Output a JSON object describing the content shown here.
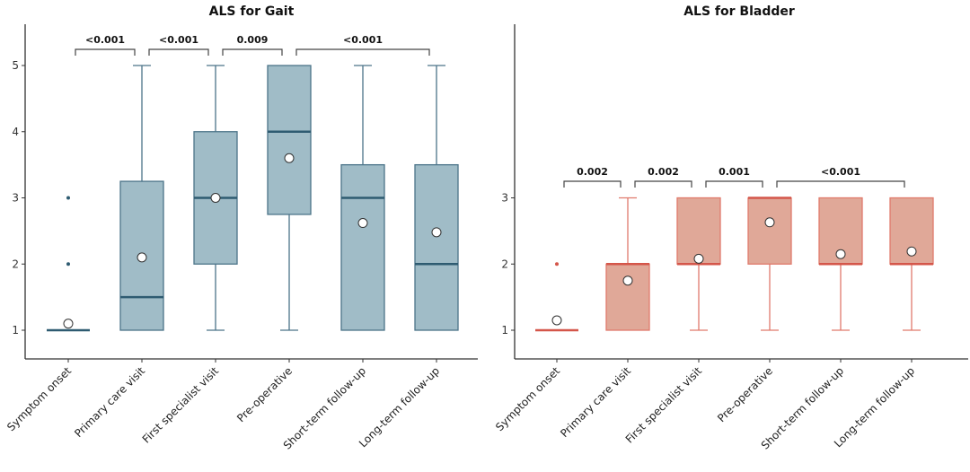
{
  "chart_data": [
    {
      "type": "box",
      "title": "ALS for Gait",
      "xlabel": "",
      "ylabel": "",
      "ylim": [
        0.55,
        5.6
      ],
      "yticks": [
        1,
        2,
        3,
        4,
        5
      ],
      "colors": {
        "fill": "#a0bcc7",
        "stroke": "#4c7489",
        "median": "#2e5b71"
      },
      "categories": [
        "Symptom onset",
        "Primary care visit",
        "First specialist visit",
        "Pre-operative",
        "Short-term follow-up",
        "Long-term follow-up"
      ],
      "boxes": [
        {
          "min": 1,
          "q1": 1,
          "median": 1,
          "q3": 1,
          "max": 1,
          "mean": 1.1,
          "outliers": [
            2,
            3
          ]
        },
        {
          "min": 1,
          "q1": 1,
          "median": 1.5,
          "q3": 3.25,
          "max": 5,
          "mean": 2.1,
          "outliers": []
        },
        {
          "min": 1,
          "q1": 2,
          "median": 3,
          "q3": 4,
          "max": 5,
          "mean": 3.0,
          "outliers": []
        },
        {
          "min": 1,
          "q1": 2.75,
          "median": 4,
          "q3": 5,
          "max": 5,
          "mean": 3.6,
          "outliers": []
        },
        {
          "min": 1,
          "q1": 1,
          "median": 3,
          "q3": 3.5,
          "max": 5,
          "mean": 2.62,
          "outliers": []
        },
        {
          "min": 1,
          "q1": 1,
          "median": 2,
          "q3": 3.5,
          "max": 5,
          "mean": 2.48,
          "outliers": []
        }
      ],
      "comparisons": [
        {
          "from": 0,
          "to": 1,
          "label": "<0.001"
        },
        {
          "from": 1,
          "to": 2,
          "label": "<0.001"
        },
        {
          "from": 2,
          "to": 3,
          "label": "0.009"
        },
        {
          "from": 3,
          "to": 5,
          "label": "<0.001"
        }
      ]
    },
    {
      "type": "box",
      "title": "ALS for Bladder",
      "xlabel": "",
      "ylabel": "",
      "ylim": [
        0.55,
        5.6
      ],
      "yticks": [
        1,
        2,
        3
      ],
      "colors": {
        "fill": "#e0a898",
        "stroke": "#e07a6c",
        "median": "#d4564a"
      },
      "categories": [
        "Symptom onset",
        "Primary care visit",
        "First specialist visit",
        "Pre-operative",
        "Short-term follow-up",
        "Long-term follow-up"
      ],
      "boxes": [
        {
          "min": 1,
          "q1": 1,
          "median": 1,
          "q3": 1,
          "max": 1,
          "mean": 1.15,
          "outliers": [
            2
          ]
        },
        {
          "min": 1,
          "q1": 1,
          "median": 2,
          "q3": 2,
          "max": 3,
          "mean": 1.75,
          "outliers": []
        },
        {
          "min": 1,
          "q1": 2,
          "median": 2,
          "q3": 3,
          "max": 3,
          "mean": 2.08,
          "outliers": []
        },
        {
          "min": 1,
          "q1": 2,
          "median": 3,
          "q3": 3,
          "max": 3,
          "mean": 2.63,
          "outliers": []
        },
        {
          "min": 1,
          "q1": 2,
          "median": 2,
          "q3": 3,
          "max": 3,
          "mean": 2.15,
          "outliers": []
        },
        {
          "min": 1,
          "q1": 2,
          "median": 2,
          "q3": 3,
          "max": 3,
          "mean": 2.19,
          "outliers": []
        }
      ],
      "comparisons": [
        {
          "from": 0,
          "to": 1,
          "label": "0.002"
        },
        {
          "from": 1,
          "to": 2,
          "label": "0.002"
        },
        {
          "from": 2,
          "to": 3,
          "label": "0.001"
        },
        {
          "from": 3,
          "to": 5,
          "label": "<0.001"
        }
      ]
    }
  ]
}
